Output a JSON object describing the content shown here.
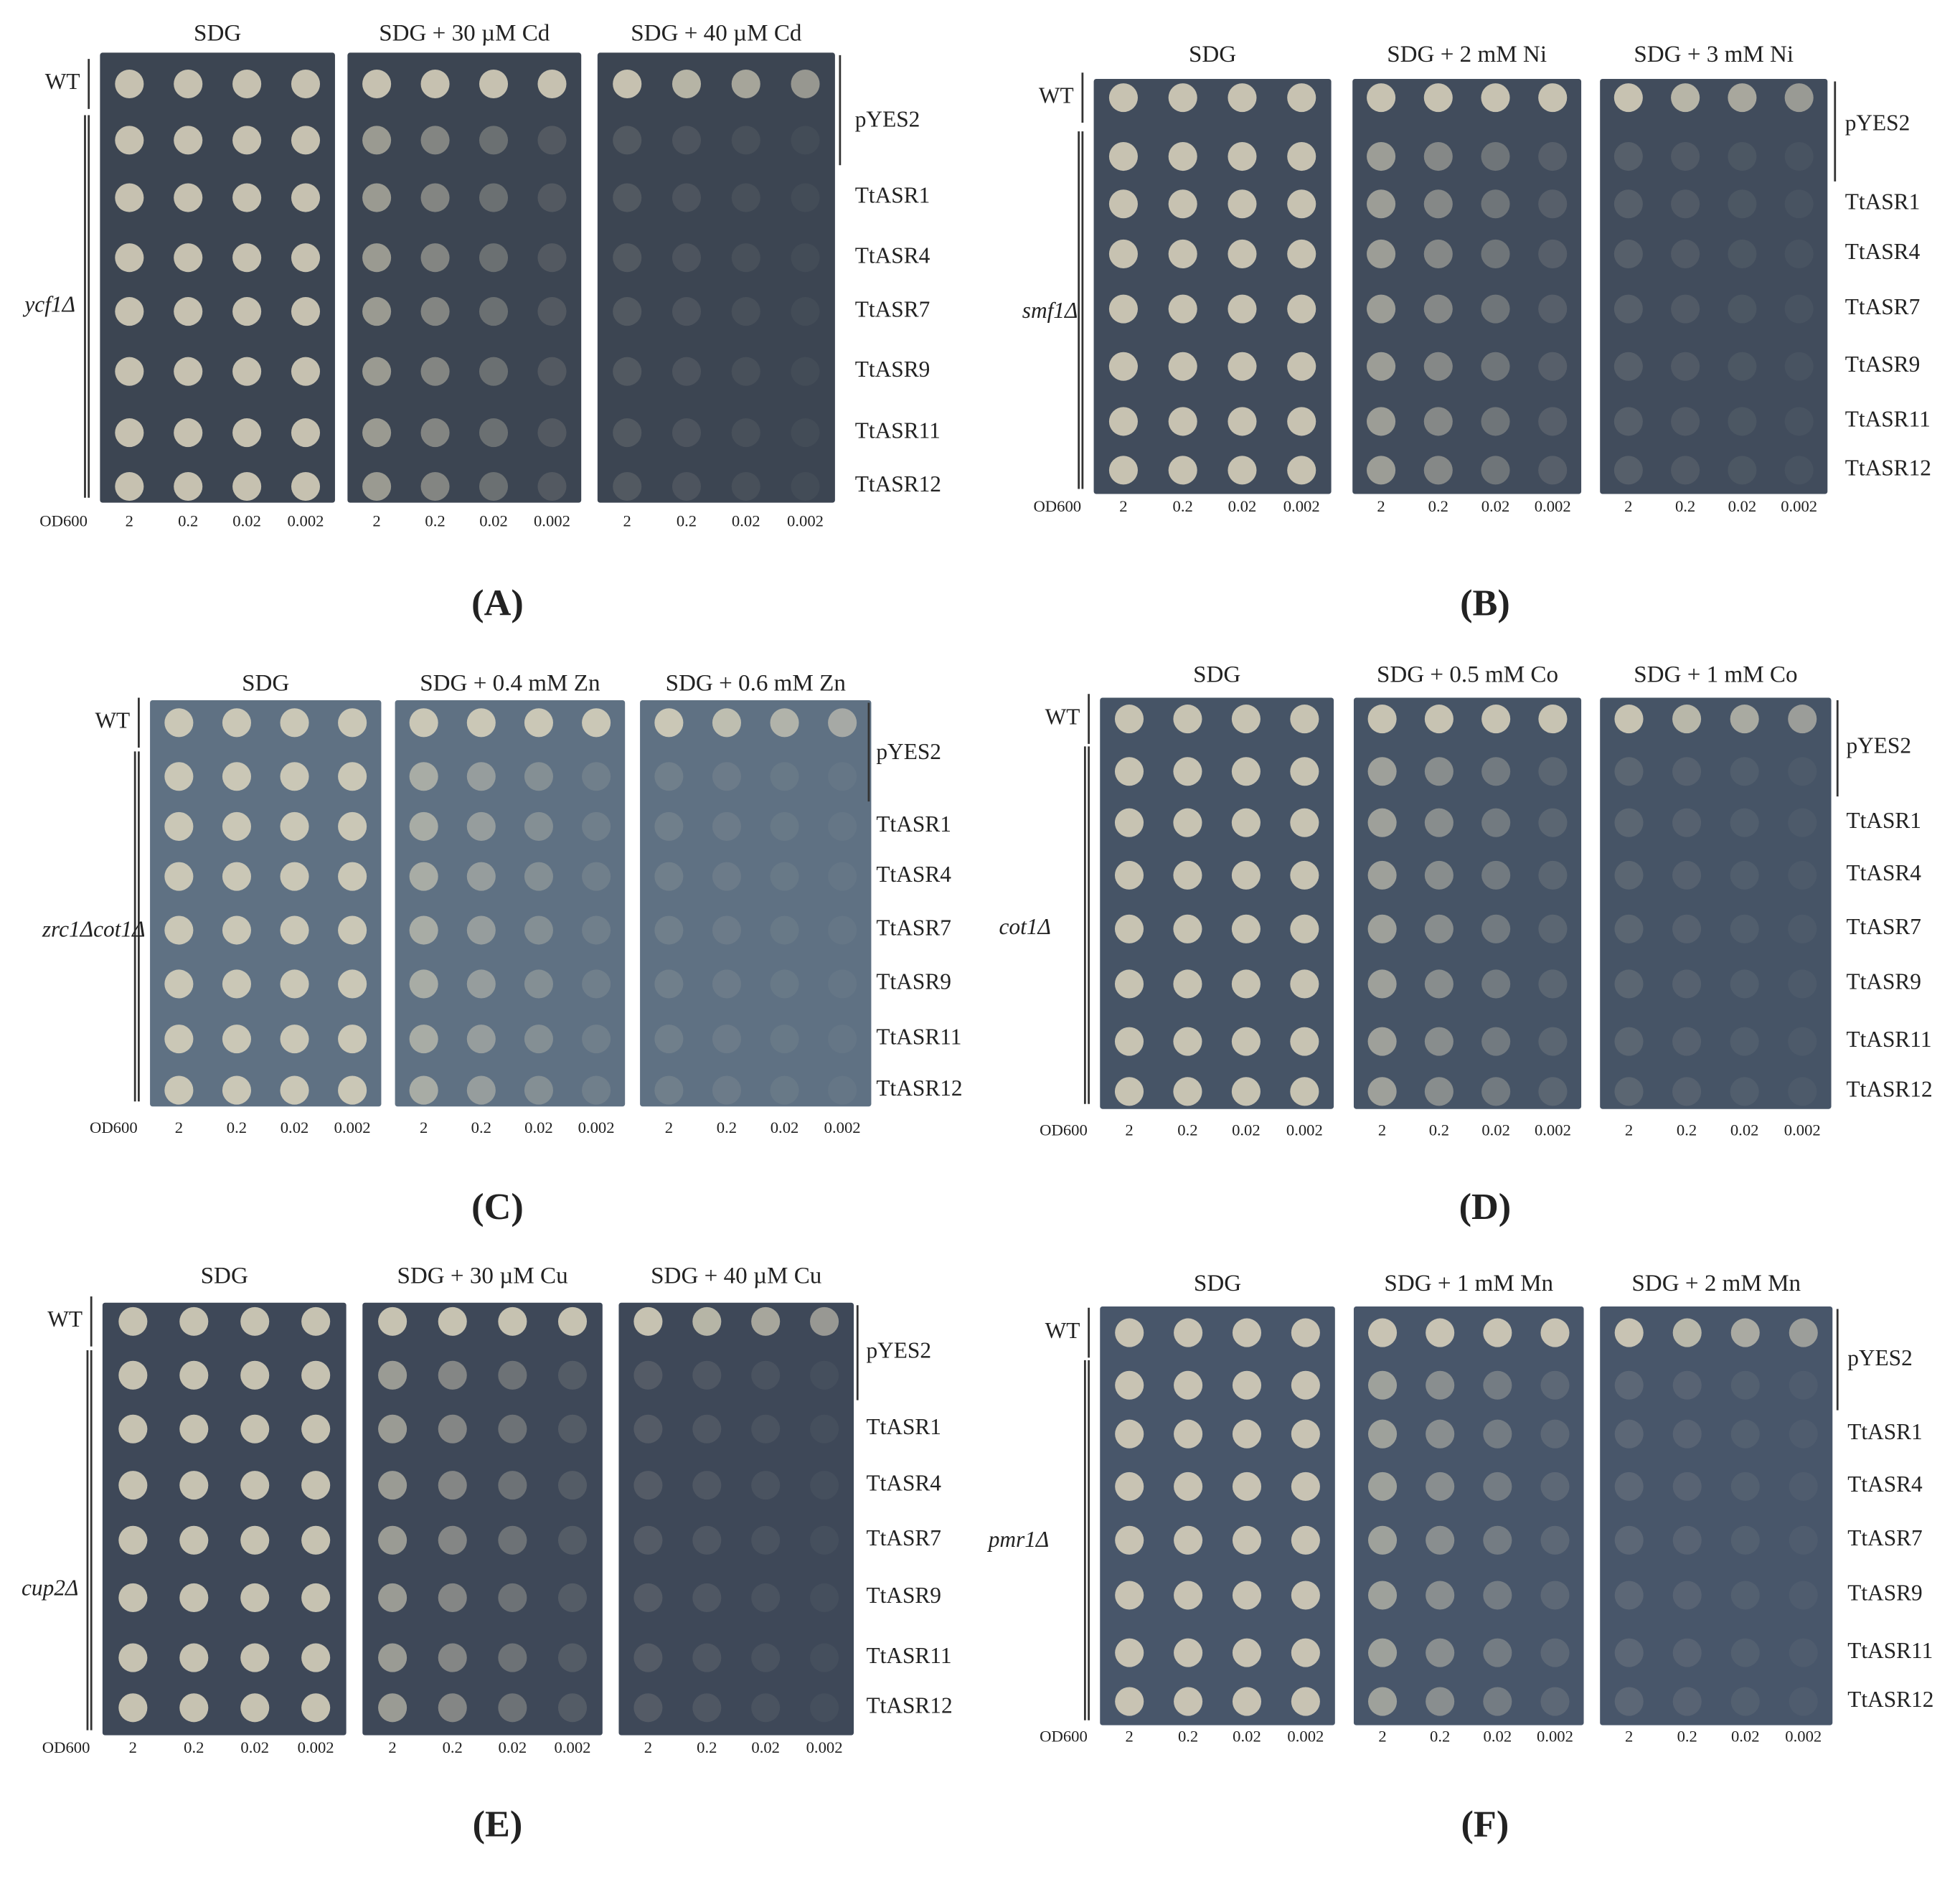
{
  "panels": [
    {
      "label": "(A)",
      "conditions": [
        "SDG",
        "SDG + 30 µM Cd",
        "SDG + 40 µM Cd"
      ],
      "control": "WT",
      "strain": "ycf1Δ",
      "rows": [
        "pYES2",
        "TtASR1",
        "TtASR4",
        "TtASR7",
        "TtASR9",
        "TtASR11",
        "TtASR12"
      ],
      "od_label": "OD600",
      "od": [
        "2",
        "0.2",
        "0.02",
        "0.002"
      ]
    },
    {
      "label": "(B)",
      "conditions": [
        "SDG",
        "SDG + 2 mM Ni",
        "SDG + 3 mM Ni"
      ],
      "control": "WT",
      "strain": "smf1Δ",
      "rows": [
        "pYES2",
        "TtASR1",
        "TtASR4",
        "TtASR7",
        "TtASR9",
        "TtASR11",
        "TtASR12"
      ],
      "od_label": "OD600",
      "od": [
        "2",
        "0.2",
        "0.02",
        "0.002"
      ]
    },
    {
      "label": "(C)",
      "conditions": [
        "SDG",
        "SDG + 0.4 mM Zn",
        "SDG + 0.6 mM Zn"
      ],
      "control": "WT",
      "strain": "zrc1Δcot1Δ",
      "rows": [
        "pYES2",
        "TtASR1",
        "TtASR4",
        "TtASR7",
        "TtASR9",
        "TtASR11",
        "TtASR12"
      ],
      "od_label": "OD600",
      "od": [
        "2",
        "0.2",
        "0.02",
        "0.002"
      ]
    },
    {
      "label": "(D)",
      "conditions": [
        "SDG",
        "SDG + 0.5 mM Co",
        "SDG + 1 mM Co"
      ],
      "control": "WT",
      "strain": "cot1Δ",
      "rows": [
        "pYES2",
        "TtASR1",
        "TtASR4",
        "TtASR7",
        "TtASR9",
        "TtASR11",
        "TtASR12"
      ],
      "od_label": "OD600",
      "od": [
        "2",
        "0.2",
        "0.02",
        "0.002"
      ]
    },
    {
      "label": "(E)",
      "conditions": [
        "SDG",
        "SDG + 30 µM Cu",
        "SDG + 40 µM Cu"
      ],
      "control": "WT",
      "strain": "cup2Δ",
      "rows": [
        "pYES2",
        "TtASR1",
        "TtASR4",
        "TtASR7",
        "TtASR9",
        "TtASR11",
        "TtASR12"
      ],
      "od_label": "OD600",
      "od": [
        "2",
        "0.2",
        "0.02",
        "0.002"
      ]
    },
    {
      "label": "(F)",
      "conditions": [
        "SDG",
        "SDG + 1 mM Mn",
        "SDG + 2 mM Mn"
      ],
      "control": "WT",
      "strain": "pmr1Δ",
      "rows": [
        "pYES2",
        "TtASR1",
        "TtASR4",
        "TtASR7",
        "TtASR9",
        "TtASR11",
        "TtASR12"
      ],
      "od_label": "OD600",
      "od": [
        "2",
        "0.2",
        "0.02",
        "0.002"
      ]
    }
  ]
}
